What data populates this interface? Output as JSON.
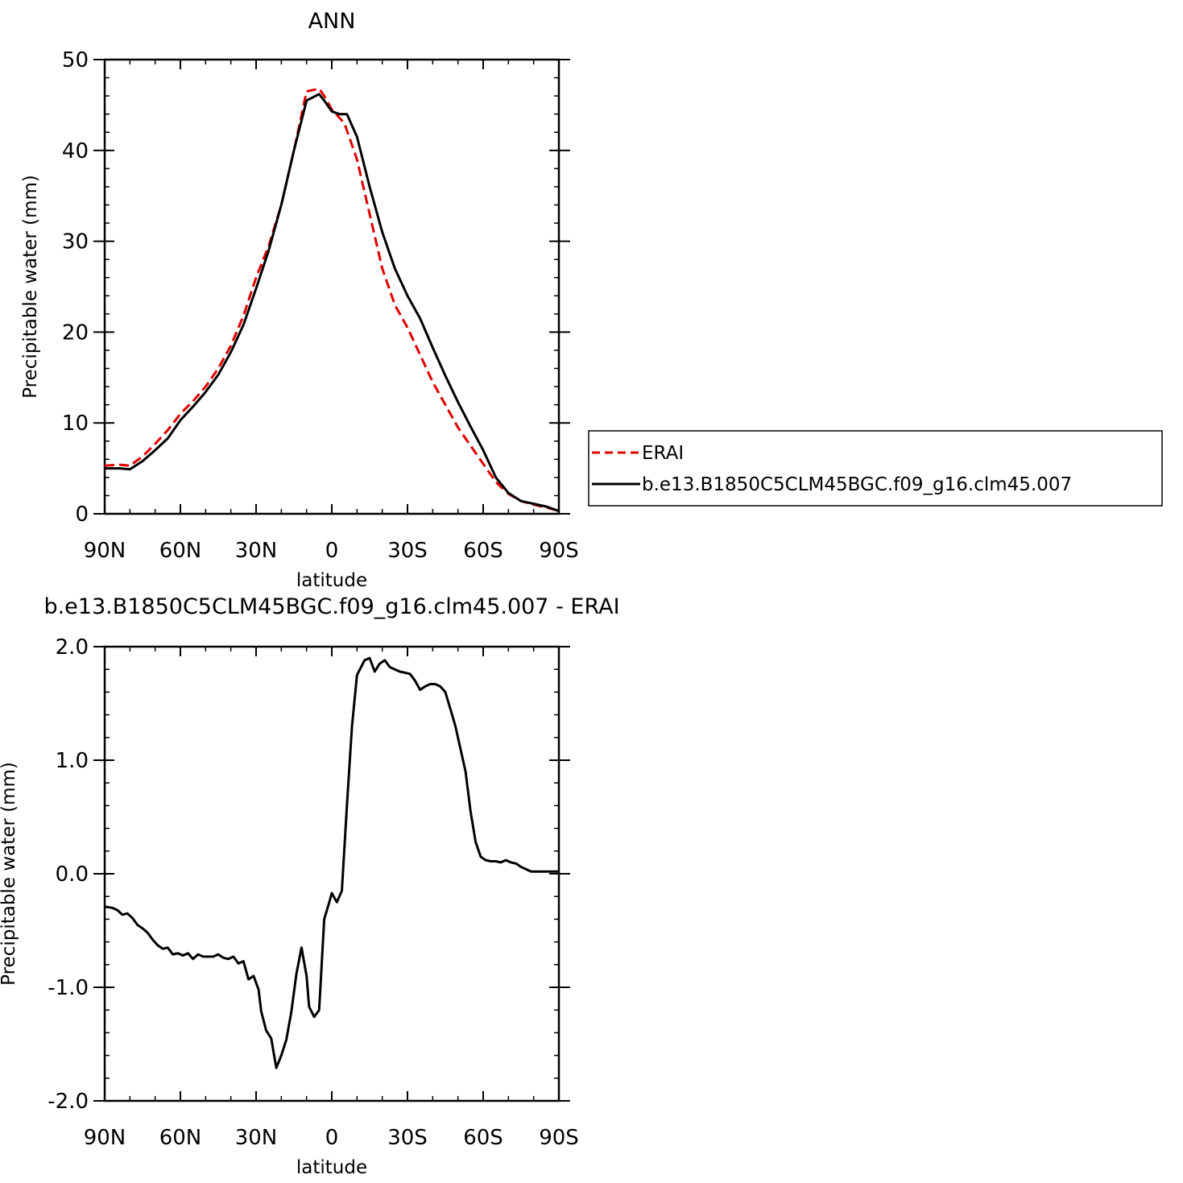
{
  "chart_data": [
    {
      "type": "line",
      "title": "ANN",
      "xlabel": "latitude",
      "ylabel": "Precipitable water (mm)",
      "xlim": [
        90,
        -90
      ],
      "ylim": [
        0,
        50
      ],
      "xticks": [
        90,
        60,
        30,
        0,
        -30,
        -60,
        -90
      ],
      "xticklabels": [
        "90N",
        "60N",
        "30N",
        "0",
        "30S",
        "60S",
        "90S"
      ],
      "yticks": [
        0,
        10,
        20,
        30,
        40,
        50
      ],
      "yticklabels": [
        "0",
        "10",
        "20",
        "30",
        "40",
        "50"
      ],
      "legend": "right",
      "series": [
        {
          "name": "ERAI",
          "style": "dashed",
          "color": "#e00000",
          "x": [
            90,
            84,
            80,
            75,
            70,
            65,
            60,
            55,
            50,
            45,
            40,
            35,
            30,
            25,
            20,
            15,
            10,
            5,
            3,
            0,
            -5,
            -10,
            -15,
            -20,
            -25,
            -30,
            -35,
            -40,
            -45,
            -50,
            -55,
            -60,
            -65,
            -70,
            -75,
            -80,
            -85,
            -90
          ],
          "values": [
            5.3,
            5.4,
            5.3,
            6.3,
            7.7,
            9.2,
            11.0,
            12.4,
            14.0,
            16.0,
            18.5,
            21.8,
            26.0,
            29.5,
            34.0,
            40.0,
            46.5,
            46.8,
            46.0,
            44.5,
            43.0,
            39.0,
            33.0,
            27.0,
            23.0,
            20.5,
            17.5,
            14.5,
            12.0,
            9.5,
            7.5,
            5.5,
            3.5,
            2.2,
            1.4,
            1.0,
            0.7,
            0.3
          ]
        },
        {
          "name": "b.e13.B1850C5CLM45BGC.f09_g16.clm45.007",
          "style": "solid",
          "color": "#000000",
          "x": [
            90,
            84,
            80,
            75,
            70,
            65,
            60,
            55,
            50,
            45,
            40,
            35,
            30,
            25,
            20,
            15,
            10,
            5,
            3,
            0,
            -3,
            -6,
            -10,
            -15,
            -20,
            -25,
            -30,
            -35,
            -40,
            -45,
            -50,
            -55,
            -60,
            -65,
            -70,
            -75,
            -80,
            -85,
            -90
          ],
          "values": [
            5.0,
            5.0,
            4.9,
            5.8,
            7.0,
            8.3,
            10.3,
            11.8,
            13.4,
            15.3,
            17.8,
            20.8,
            24.8,
            29.0,
            34.0,
            40.0,
            45.5,
            46.2,
            45.5,
            44.3,
            44.0,
            44.0,
            41.5,
            36.0,
            31.0,
            27.0,
            24.0,
            21.5,
            18.3,
            15.2,
            12.3,
            9.6,
            7.0,
            4.0,
            2.3,
            1.4,
            1.1,
            0.8,
            0.3
          ]
        }
      ]
    },
    {
      "type": "line",
      "title": "b.e13.B1850C5CLM45BGC.f09_g16.clm45.007 - ERAI",
      "xlabel": "latitude",
      "ylabel": "Precipitable water (mm)",
      "xlim": [
        90,
        -90
      ],
      "ylim": [
        -2,
        2
      ],
      "xticks": [
        90,
        60,
        30,
        0,
        -30,
        -60,
        -90
      ],
      "xticklabels": [
        "90N",
        "60N",
        "30N",
        "0",
        "30S",
        "60S",
        "90S"
      ],
      "yticks": [
        -2,
        -1,
        0,
        1,
        2
      ],
      "yticklabels": [
        "-2.0",
        "-1.0",
        "0.0",
        "1.0",
        "2.0"
      ],
      "series": [
        {
          "style": "solid",
          "color": "#000000",
          "x": [
            90,
            87,
            85,
            83,
            81,
            79,
            77,
            75,
            73,
            71,
            69,
            67,
            65,
            63,
            61,
            59,
            57,
            55,
            53,
            51,
            49,
            47,
            45,
            43,
            41,
            39,
            37,
            35,
            33,
            31,
            29,
            28,
            26,
            24,
            22,
            20,
            18,
            16,
            14,
            12,
            10,
            9,
            7,
            5,
            3,
            1,
            0,
            -2,
            -4,
            -6,
            -8,
            -10,
            -13,
            -15,
            -17,
            -19,
            -21,
            -23,
            -25,
            -27,
            -29,
            -31,
            -33,
            -35,
            -37,
            -39,
            -41,
            -43,
            -45,
            -47,
            -49,
            -51,
            -53,
            -55,
            -57,
            -59,
            -61,
            -63,
            -65,
            -67,
            -69,
            -71,
            -73,
            -75,
            -77,
            -79,
            -81,
            -83,
            -85,
            -87,
            -89,
            -90
          ],
          "values": [
            -0.29,
            -0.3,
            -0.32,
            -0.36,
            -0.35,
            -0.39,
            -0.45,
            -0.48,
            -0.52,
            -0.58,
            -0.63,
            -0.66,
            -0.65,
            -0.71,
            -0.7,
            -0.72,
            -0.7,
            -0.75,
            -0.71,
            -0.73,
            -0.73,
            -0.73,
            -0.71,
            -0.74,
            -0.75,
            -0.73,
            -0.79,
            -0.77,
            -0.93,
            -0.9,
            -1.02,
            -1.21,
            -1.38,
            -1.45,
            -1.71,
            -1.6,
            -1.46,
            -1.21,
            -0.88,
            -0.65,
            -0.9,
            -1.17,
            -1.26,
            -1.2,
            -0.4,
            -0.25,
            -0.17,
            -0.25,
            -0.15,
            0.6,
            1.3,
            1.75,
            1.88,
            1.9,
            1.78,
            1.85,
            1.88,
            1.82,
            1.8,
            1.78,
            1.77,
            1.76,
            1.7,
            1.62,
            1.65,
            1.67,
            1.67,
            1.65,
            1.6,
            1.45,
            1.3,
            1.1,
            0.9,
            0.55,
            0.28,
            0.15,
            0.12,
            0.11,
            0.11,
            0.1,
            0.12,
            0.1,
            0.09,
            0.06,
            0.04,
            0.02,
            0.02,
            0.02,
            0.02,
            0.02,
            0.02,
            0.02
          ]
        }
      ]
    }
  ]
}
